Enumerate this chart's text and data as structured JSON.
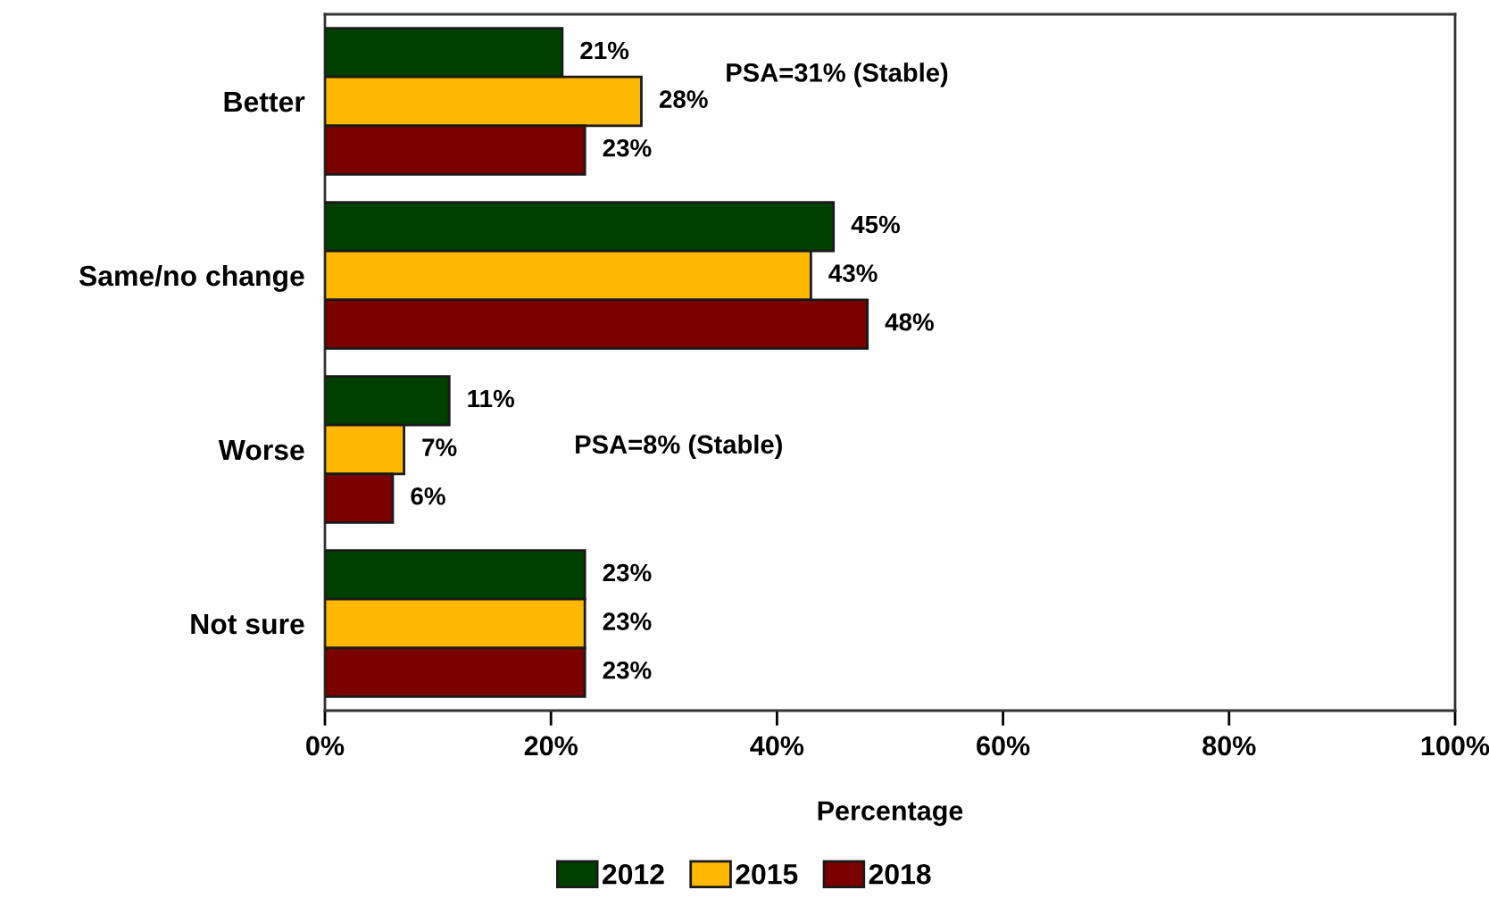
{
  "chart_data": {
    "type": "bar",
    "orientation": "horizontal",
    "categories": [
      "Better",
      "Same/no change",
      "Worse",
      "Not sure"
    ],
    "series": [
      {
        "name": "2012",
        "color": "#004000",
        "values": [
          21,
          45,
          11,
          23
        ],
        "value_labels": [
          "21%",
          "45%",
          "11%",
          "23%"
        ]
      },
      {
        "name": "2015",
        "color": "#ffb800",
        "values": [
          28,
          43,
          7,
          23
        ],
        "value_labels": [
          "28%",
          "43%",
          "7%",
          "23%"
        ]
      },
      {
        "name": "2018",
        "color": "#7b0000",
        "values": [
          23,
          48,
          6,
          23
        ],
        "value_labels": [
          "23%",
          "48%",
          "6%",
          "23%"
        ]
      }
    ],
    "xlabel": "Percentage",
    "xlim": [
      0,
      100
    ],
    "xticks": [
      {
        "value": 0,
        "label": "0%"
      },
      {
        "value": 20,
        "label": "20%"
      },
      {
        "value": 40,
        "label": "40%"
      },
      {
        "value": 60,
        "label": "60%"
      },
      {
        "value": 80,
        "label": "80%"
      },
      {
        "value": 100,
        "label": "100%"
      }
    ],
    "annotations": [
      "PSA=31% (Stable)",
      "PSA=8% (Stable)"
    ],
    "legend": "bottom",
    "grid": false
  }
}
